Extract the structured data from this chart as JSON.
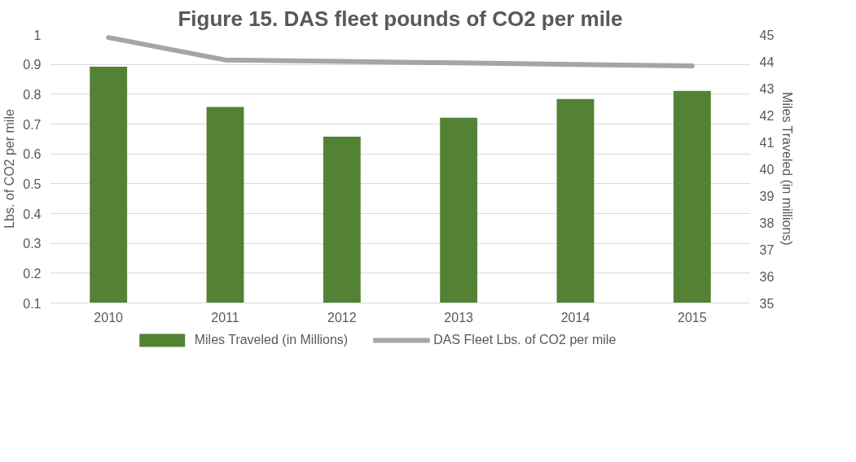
{
  "chart_data": {
    "type": "bar",
    "title": "Figure 15. DAS fleet pounds of CO2 per mile",
    "ylabel": "Lbs. of CO2 per mile",
    "y2label": "Miles Traveled (in millions)",
    "categories": [
      "2010",
      "2011",
      "2012",
      "2013",
      "2014",
      "2015"
    ],
    "series": [
      {
        "name": "Miles Traveled (in Millions)",
        "type": "bar",
        "axis": "y2",
        "color": "#548235",
        "values": [
          43.8,
          42.3,
          41.2,
          41.9,
          42.6,
          42.9
        ]
      },
      {
        "name": "DAS Fleet Lbs. of CO2 per mile",
        "type": "line",
        "axis": "y",
        "color": "#a5a5a5",
        "values": [
          0.99,
          0.915,
          0.91,
          0.905,
          0.9,
          0.895
        ]
      }
    ],
    "ylim": [
      0.1,
      1
    ],
    "yticks": [
      0.1,
      0.2,
      0.3,
      0.4,
      0.5,
      0.6,
      0.7,
      0.8,
      0.9,
      1
    ],
    "y2lim": [
      35,
      45
    ],
    "y2ticks": [
      35,
      36,
      37,
      38,
      39,
      40,
      41,
      42,
      43,
      44,
      45
    ],
    "grid": "y",
    "legend": "bottom"
  }
}
